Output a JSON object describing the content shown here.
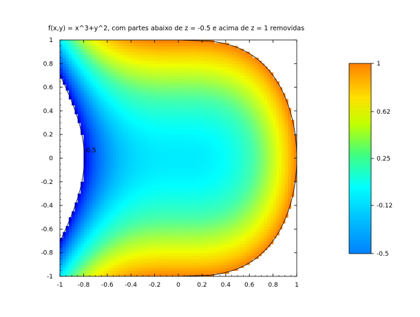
{
  "chart_data": {
    "type": "heatmap",
    "title": "f(x,y) = x^3+y^2, com partes abaixo de z = -0.5 e acima de z = 1 removidas",
    "function": "x^3+y^2",
    "xlabel": "",
    "ylabel": "",
    "xlim": [
      -1,
      1
    ],
    "ylim": [
      -1,
      1
    ],
    "x_ticks": [
      "-1",
      "-0.8",
      "-0.6",
      "-0.4",
      "-0.2",
      "0",
      "0.2",
      "0.4",
      "0.6",
      "0.8",
      "1"
    ],
    "y_ticks": [
      "1",
      "0.8",
      "0.6",
      "0.4",
      "0.2",
      "0",
      "-0.2",
      "-0.4",
      "-0.6",
      "-0.8",
      "-1"
    ],
    "z_min": -0.5,
    "z_max": 1,
    "contour_label": "-0.5",
    "colorbar": {
      "ticks": [
        "1",
        "0.62",
        "0.25",
        "-0.12",
        "-0.5"
      ],
      "tick_values": [
        1,
        0.62,
        0.25,
        -0.12,
        -0.5
      ],
      "range": [
        -0.5,
        1
      ],
      "colormap": "jet",
      "placement": "right"
    },
    "grid": false
  }
}
